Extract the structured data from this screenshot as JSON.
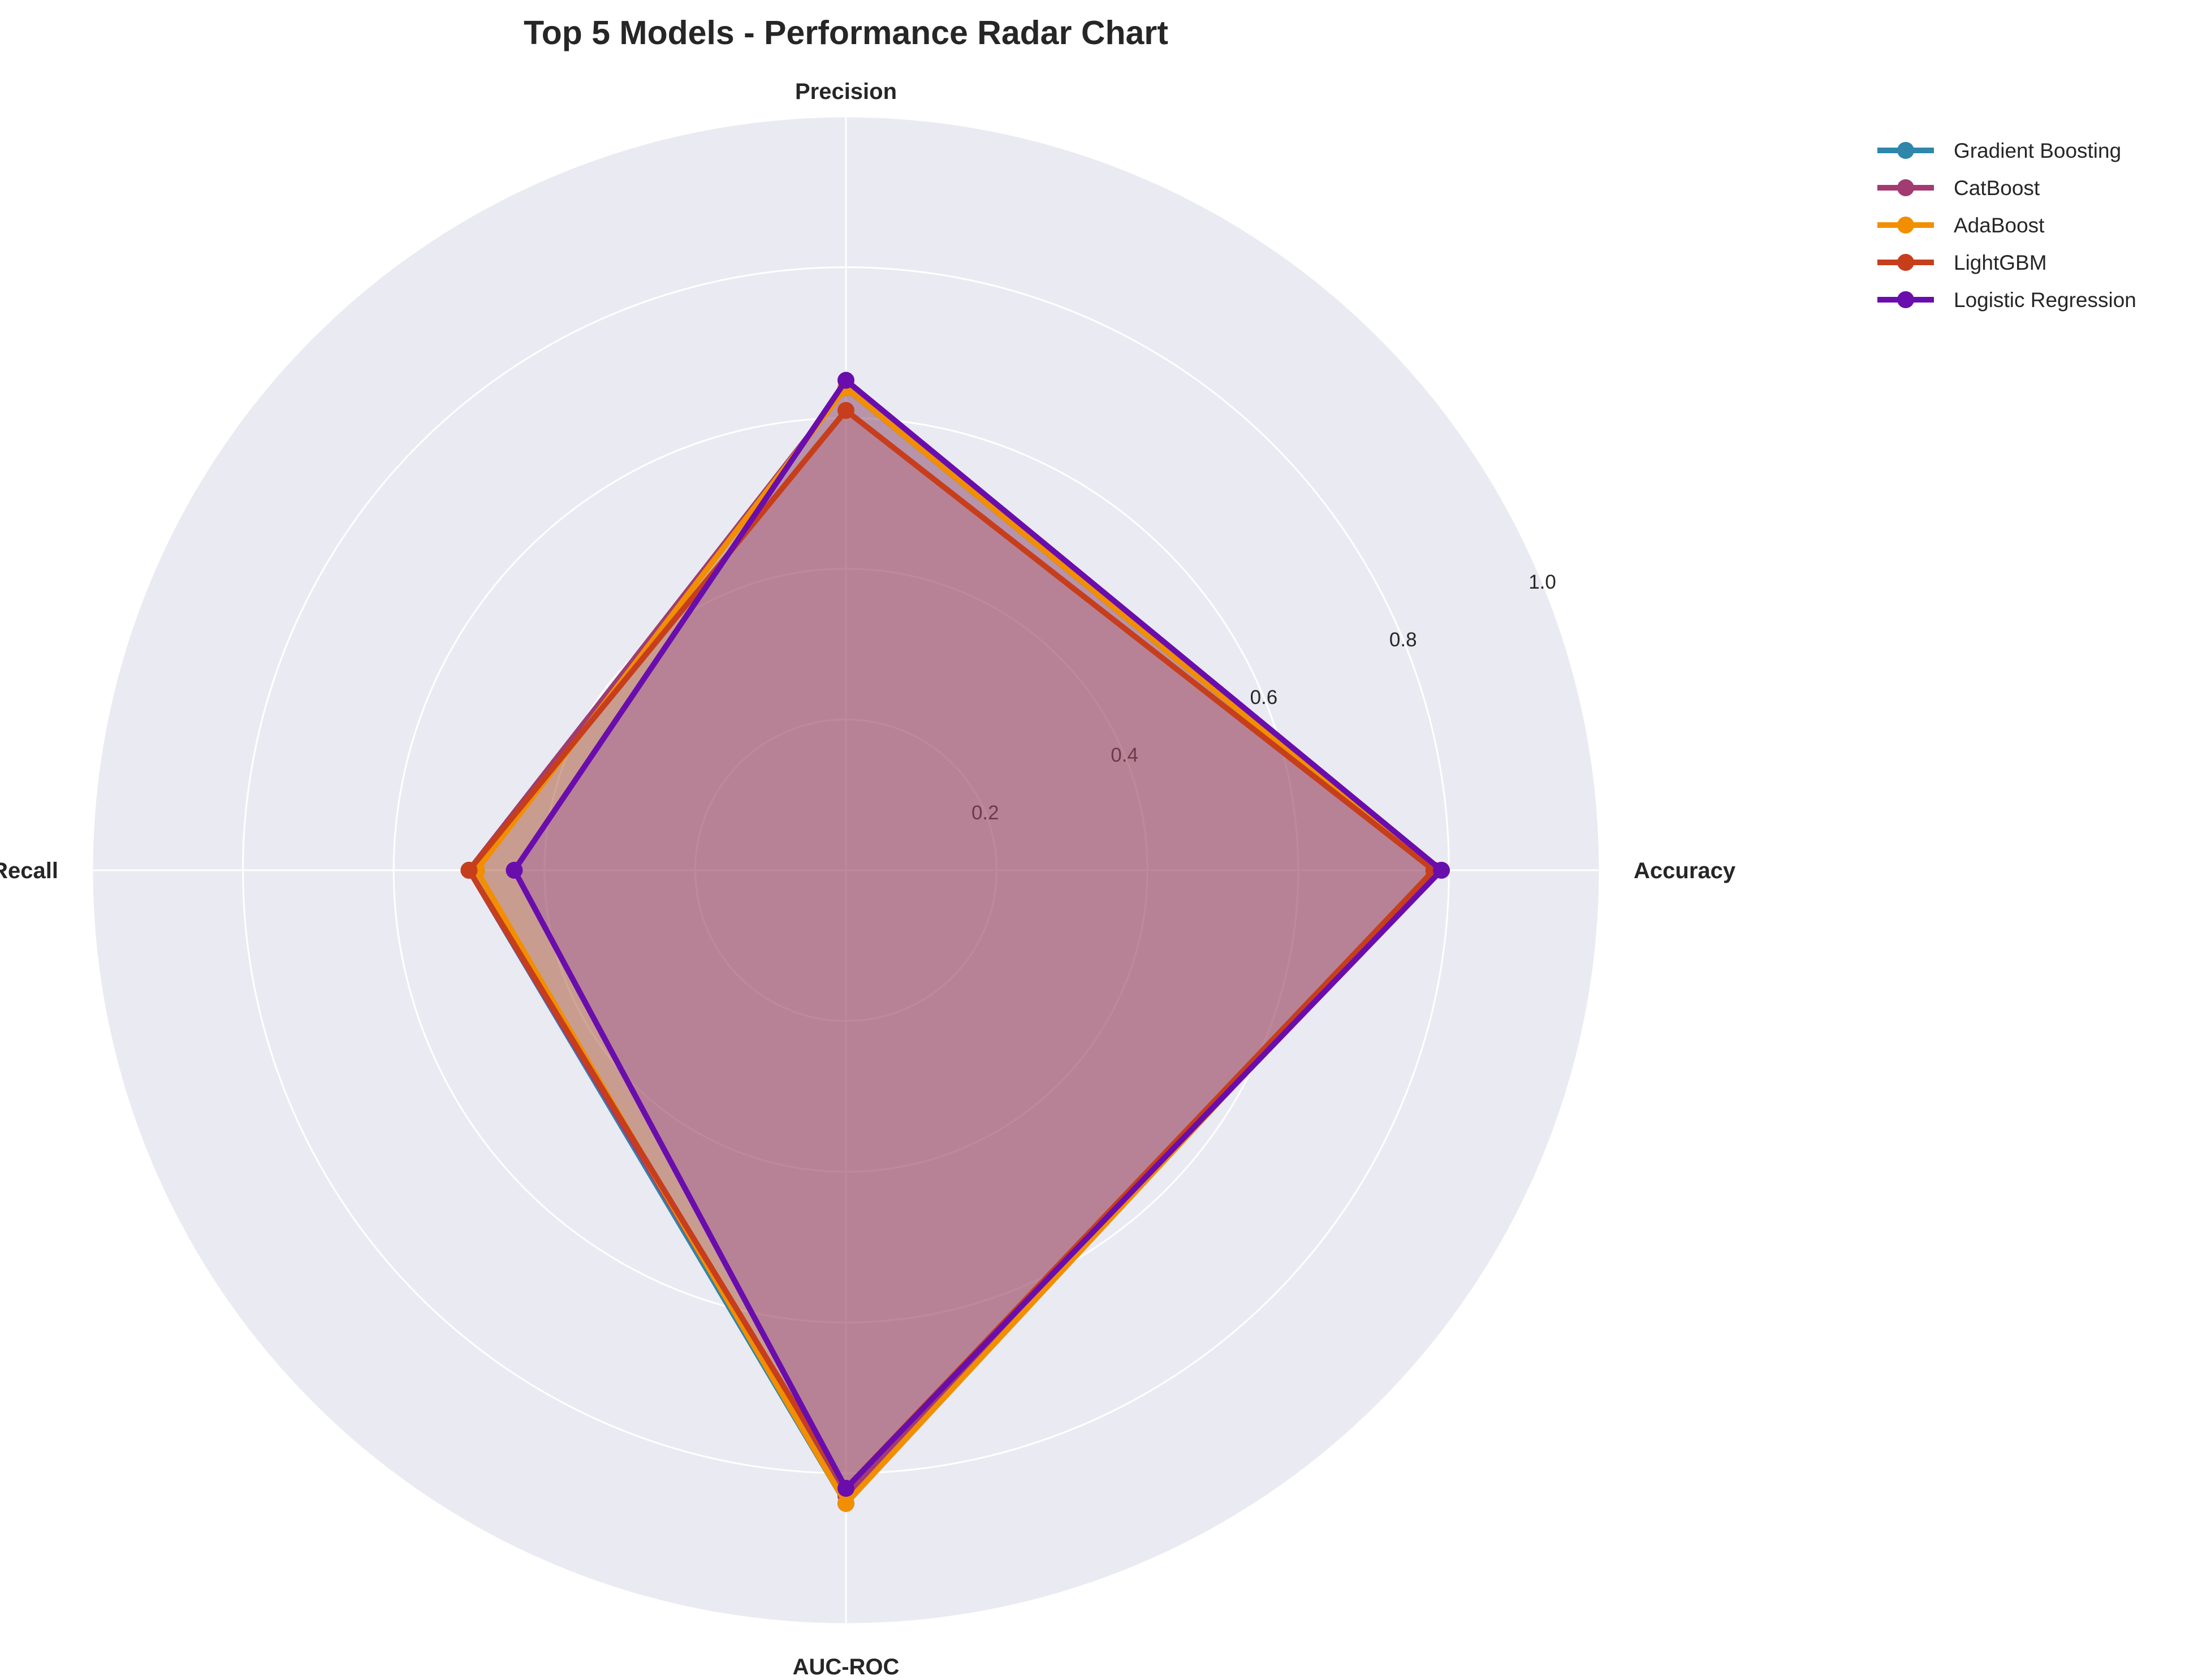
{
  "chart_data": {
    "type": "radar",
    "title": "Top 5 Models - Performance Radar Chart",
    "axes": [
      "Accuracy",
      "Precision",
      "Recall",
      "AUC-ROC"
    ],
    "r_ticks": [
      "0.2",
      "0.4",
      "0.6",
      "0.8",
      "1.0"
    ],
    "r_tick_values": [
      0.2,
      0.4,
      0.6,
      0.8,
      1.0
    ],
    "rlim": [
      0,
      1.0
    ],
    "grid": true,
    "legend_position": "upper right, outside plot",
    "series": [
      {
        "name": "Gradient Boosting",
        "color": "#2E86AB",
        "values": [
          0.78,
          0.64,
          0.5,
          0.84
        ]
      },
      {
        "name": "CatBoost",
        "color": "#A23B72",
        "values": [
          0.78,
          0.64,
          0.5,
          0.83
        ]
      },
      {
        "name": "AdaBoost",
        "color": "#F18F01",
        "values": [
          0.78,
          0.64,
          0.49,
          0.84
        ]
      },
      {
        "name": "LightGBM",
        "color": "#C73E1D",
        "values": [
          0.78,
          0.61,
          0.5,
          0.82
        ]
      },
      {
        "name": "Logistic Regression",
        "color": "#6A0DAD",
        "values": [
          0.79,
          0.65,
          0.44,
          0.82
        ]
      }
    ]
  },
  "colors": {
    "polar_background": "#EAEAF2",
    "grid": "#FFFFFF",
    "fill": "#A23B72"
  }
}
